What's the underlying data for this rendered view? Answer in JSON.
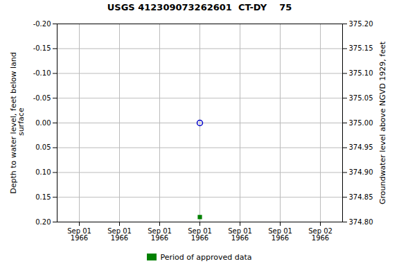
{
  "chart_data": {
    "type": "scatter",
    "title": "USGS 412309073262601  CT-DY    75",
    "ylabel": "Depth to water level, feet below land\n surface",
    "y2label": "Groundwater level above NGVD 1929, feet",
    "categories": [
      "Sep 01\n1966",
      "Sep 01\n1966",
      "Sep 01\n1966",
      "Sep 01\n1966",
      "Sep 01\n1966",
      "Sep 01\n1966",
      "Sep 02\n1966"
    ],
    "ylim": [
      0.2,
      -0.2
    ],
    "yticks": [
      {
        "value": -0.2,
        "label": "-0.20"
      },
      {
        "value": -0.15,
        "label": "-0.15"
      },
      {
        "value": -0.1,
        "label": "-0.10"
      },
      {
        "value": -0.05,
        "label": "-0.05"
      },
      {
        "value": 0.0,
        "label": "0.00"
      },
      {
        "value": 0.05,
        "label": "0.05"
      },
      {
        "value": 0.1,
        "label": "0.10"
      },
      {
        "value": 0.15,
        "label": "0.15"
      },
      {
        "value": 0.2,
        "label": "0.20"
      }
    ],
    "y2lim": [
      374.8,
      375.2
    ],
    "y2ticks": [
      {
        "value": 374.8,
        "label": "374.80"
      },
      {
        "value": 374.85,
        "label": "374.85"
      },
      {
        "value": 374.9,
        "label": "374.90"
      },
      {
        "value": 374.95,
        "label": "374.95"
      },
      {
        "value": 375.0,
        "label": "375.00"
      },
      {
        "value": 375.05,
        "label": "375.05"
      },
      {
        "value": 375.1,
        "label": "375.10"
      },
      {
        "value": 375.15,
        "label": "375.15"
      },
      {
        "value": 375.2,
        "label": "375.20"
      }
    ],
    "series": [
      {
        "color": "#0000cc",
        "marker": "open_circle",
        "values": [
          null,
          null,
          null,
          0.0,
          null,
          null,
          null
        ]
      },
      {
        "name": "Period of approved data",
        "color": "#008000",
        "marker": "square",
        "values": [
          null,
          null,
          null,
          0.19,
          null,
          null,
          null
        ]
      }
    ],
    "grid": true,
    "legend": "bottom"
  }
}
